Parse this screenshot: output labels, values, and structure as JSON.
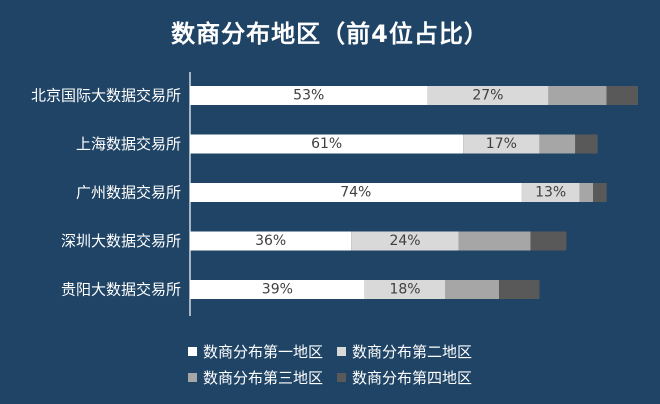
{
  "chart_data": {
    "type": "bar",
    "orientation": "horizontal",
    "stacked": true,
    "title": "数商分布地区（前4位占比）",
    "categories": [
      "北京国际大数据交易所",
      "上海数据交易所",
      "广州数据交易所",
      "深圳大数据交易所",
      "贵阳大数据交易所"
    ],
    "series": [
      {
        "name": "数商分布第一地区",
        "color": "#ffffff",
        "values": [
          53,
          61,
          74,
          36,
          39
        ],
        "labels": [
          "53%",
          "61%",
          "74%",
          "36%",
          "39%"
        ]
      },
      {
        "name": "数商分布第二地区",
        "color": "#d9d9d9",
        "values": [
          27,
          17,
          13,
          24,
          18
        ],
        "labels": [
          "27%",
          "17%",
          "13%",
          "24%",
          "18%"
        ]
      },
      {
        "name": "数商分布第三地区",
        "color": "#a6a6a6",
        "values": [
          13,
          8,
          3,
          16,
          12
        ],
        "labels": [
          "",
          "",
          "",
          "",
          ""
        ]
      },
      {
        "name": "数商分布第四地区",
        "color": "#595959",
        "values": [
          7,
          5,
          3,
          8,
          9
        ],
        "labels": [
          "",
          "",
          "",
          "",
          ""
        ]
      }
    ],
    "xlim": [
      0,
      100
    ],
    "grid": false,
    "legend_position": "bottom"
  }
}
